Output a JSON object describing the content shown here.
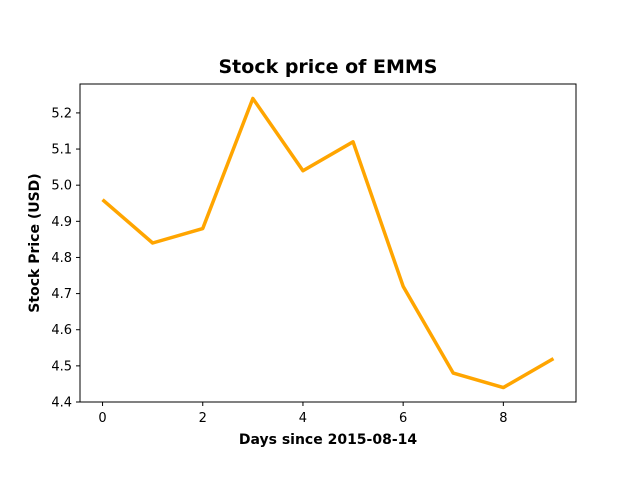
{
  "chart_data": {
    "type": "line",
    "title": "Stock price of EMMS",
    "xlabel": "Days since 2015-08-14",
    "ylabel": "Stock Price (USD)",
    "x": [
      0,
      1,
      2,
      3,
      4,
      5,
      6,
      7,
      8,
      9
    ],
    "series": [
      {
        "values": [
          4.96,
          4.84,
          4.88,
          5.24,
          5.04,
          5.12,
          4.72,
          4.48,
          4.44,
          4.52
        ],
        "color": "#FFA500"
      }
    ],
    "xlim": [
      -0.45,
      9.45
    ],
    "ylim": [
      4.4,
      5.28
    ],
    "xticks": [
      0,
      2,
      4,
      6,
      8
    ],
    "xtick_labels": [
      "0",
      "2",
      "4",
      "6",
      "8"
    ],
    "yticks": [
      4.4,
      4.5,
      4.6,
      4.7,
      4.8,
      4.9,
      5.0,
      5.1,
      5.2
    ],
    "ytick_labels": [
      "4.4",
      "4.5",
      "4.6",
      "4.7",
      "4.8",
      "4.9",
      "5.0",
      "5.1",
      "5.2"
    ],
    "grid": false,
    "legend": false
  }
}
